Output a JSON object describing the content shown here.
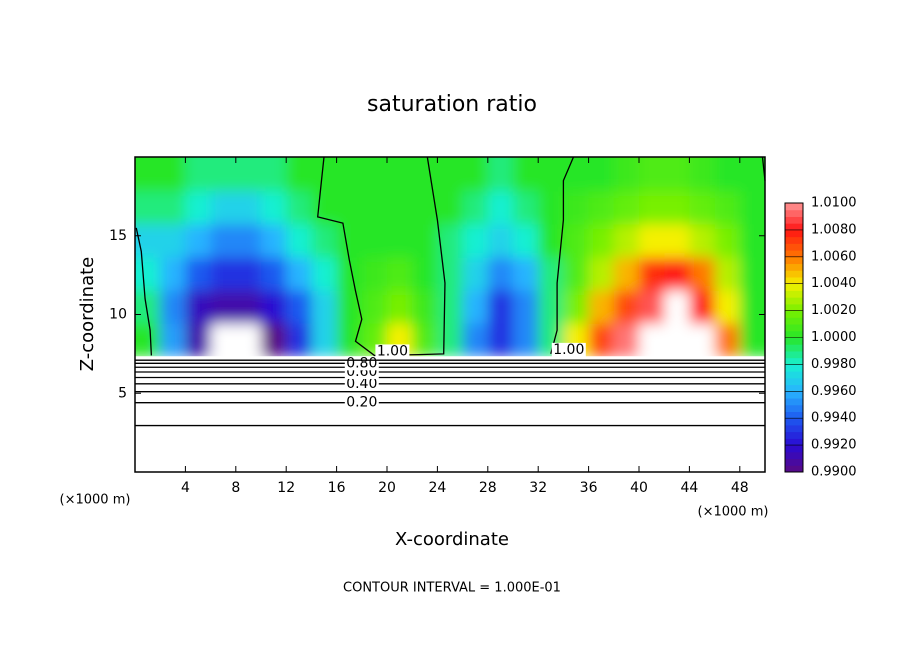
{
  "chart_data": {
    "type": "contour",
    "title": "saturation ratio",
    "x_label": "X-coordinate",
    "y_label": "Z-coordinate",
    "x_unit": "(×1000 m)",
    "footnote": "CONTOUR INTERVAL = 1.000E-01",
    "xlim": [
      0,
      50
    ],
    "ylim": [
      0,
      20
    ],
    "xticks": [
      4,
      8,
      12,
      16,
      20,
      24,
      28,
      32,
      36,
      40,
      44,
      48
    ],
    "yticks": [
      5,
      10,
      15
    ],
    "colorbar": {
      "lim": [
        0.99,
        1.01
      ],
      "ticks": [
        {
          "value": 0.99,
          "label": "0.9900"
        },
        {
          "value": 0.992,
          "label": "0.9920"
        },
        {
          "value": 0.994,
          "label": "0.9940"
        },
        {
          "value": 0.996,
          "label": "0.9960"
        },
        {
          "value": 0.998,
          "label": "0.9980"
        },
        {
          "value": 1.0,
          "label": "1.0000"
        },
        {
          "value": 1.002,
          "label": "1.0020"
        },
        {
          "value": 1.004,
          "label": "1.0040"
        },
        {
          "value": 1.006,
          "label": "1.0060"
        },
        {
          "value": 1.008,
          "label": "1.0080"
        },
        {
          "value": 1.01,
          "label": "1.0100"
        }
      ],
      "colors": [
        "#5a0a82",
        "#2a0ad2",
        "#1e5af0",
        "#28b4ff",
        "#18f0d2",
        "#28e628",
        "#78f000",
        "#f5f000",
        "#ff7800",
        "#ff1414",
        "#ff9696"
      ]
    },
    "field": {
      "x": [
        1,
        3,
        5,
        7,
        9,
        11,
        13,
        15,
        17,
        19,
        21,
        23,
        25,
        27,
        29,
        31,
        33,
        35,
        37,
        39,
        41,
        43,
        45,
        47,
        49
      ],
      "z": [
        8.4,
        10.5,
        12.6,
        14.7,
        16.8,
        18.9
      ],
      "values": [
        [
          1.0,
          0.9955,
          0.991,
          0.989,
          0.989,
          0.99,
          0.993,
          0.997,
          1.0,
          1.0015,
          1.004,
          1.001,
          0.999,
          0.995,
          0.993,
          0.995,
          0.999,
          1.004,
          1.007,
          1.0095,
          1.011,
          1.011,
          1.011,
          1.006,
          1.0
        ],
        [
          0.999,
          0.995,
          0.9915,
          0.991,
          0.991,
          0.992,
          0.994,
          0.997,
          1.0,
          1.001,
          1.002,
          1.0005,
          0.999,
          0.996,
          0.993,
          0.995,
          0.999,
          1.002,
          1.005,
          1.007,
          1.009,
          1.011,
          1.008,
          1.004,
          1.0
        ],
        [
          0.998,
          0.996,
          0.994,
          0.993,
          0.993,
          0.994,
          0.996,
          0.998,
          1.0,
          1.0005,
          1.001,
          1.0,
          0.999,
          0.997,
          0.995,
          0.996,
          0.999,
          1.001,
          1.003,
          1.005,
          1.0075,
          1.008,
          1.006,
          1.003,
          1.0
        ],
        [
          0.997,
          0.997,
          0.996,
          0.995,
          0.995,
          0.996,
          0.998,
          0.999,
          1.0,
          1.0,
          1.0,
          1.0,
          0.999,
          0.998,
          0.997,
          0.998,
          1.0,
          1.001,
          1.002,
          1.003,
          1.004,
          1.004,
          1.003,
          1.002,
          1.0
        ],
        [
          0.999,
          0.999,
          0.998,
          0.997,
          0.997,
          0.998,
          0.999,
          1.0,
          1.0,
          1.0,
          1.0,
          1.0,
          1.0,
          0.999,
          0.998,
          0.999,
          1.0,
          1.0005,
          1.001,
          1.0015,
          1.002,
          1.002,
          1.0015,
          1.001,
          1.0
        ],
        [
          1.0,
          1.0,
          0.999,
          0.999,
          0.999,
          0.999,
          1.0,
          1.0,
          1.0,
          1.0,
          1.0,
          1.0,
          1.0,
          1.0,
          0.999,
          1.0,
          1.0,
          1.0,
          1.0,
          1.0005,
          1.001,
          1.001,
          1.0005,
          1.0,
          1.0
        ]
      ]
    },
    "contours": [
      {
        "level": 0.1,
        "x": [
          0,
          50
        ],
        "z": [
          2.95,
          2.95
        ]
      },
      {
        "level": 0.2,
        "label": "0.20",
        "x": [
          0,
          50
        ],
        "z": [
          4.4,
          4.4
        ]
      },
      {
        "level": 0.3,
        "x": [
          0,
          50
        ],
        "z": [
          5.1,
          5.1
        ]
      },
      {
        "level": 0.4,
        "label": "0.40",
        "x": [
          0,
          50
        ],
        "z": [
          5.6,
          5.6
        ]
      },
      {
        "level": 0.5,
        "x": [
          0,
          50
        ],
        "z": [
          6.0,
          6.0
        ]
      },
      {
        "level": 0.6,
        "label": "0.60",
        "x": [
          0,
          50
        ],
        "z": [
          6.35,
          6.35
        ]
      },
      {
        "level": 0.7,
        "x": [
          0,
          50
        ],
        "z": [
          6.65,
          6.65
        ]
      },
      {
        "level": 0.8,
        "label": "0.80",
        "x": [
          0,
          50
        ],
        "z": [
          6.9,
          6.9
        ]
      },
      {
        "level": 0.9,
        "x": [
          0,
          50
        ],
        "z": [
          7.1,
          7.1
        ]
      },
      {
        "level": 1.0,
        "x": [
          0.1,
          0.5,
          0.8,
          1.2,
          1.3
        ],
        "z": [
          15.5,
          14,
          11,
          9,
          7.4
        ]
      },
      {
        "level": 1.0,
        "label": "1.00",
        "x": [
          15.0,
          14.8,
          14.5,
          16.5,
          17.0,
          17.5,
          18.0,
          17.5,
          19.0,
          22.5,
          24.5,
          24.6,
          24.0,
          23.2
        ],
        "z": [
          20,
          18.5,
          16.2,
          15.8,
          13.5,
          11.5,
          9.7,
          8.3,
          7.4,
          7.45,
          7.5,
          12,
          16,
          20
        ]
      },
      {
        "level": 1.0,
        "label": "1.00",
        "x": [
          34.8,
          34.0,
          34.0,
          33.5,
          33.5,
          33.0
        ],
        "z": [
          20,
          18.5,
          16,
          12,
          9,
          7.5
        ]
      },
      {
        "level": 1.0,
        "x": [
          49.8,
          50
        ],
        "z": [
          20,
          18.5
        ]
      }
    ]
  }
}
